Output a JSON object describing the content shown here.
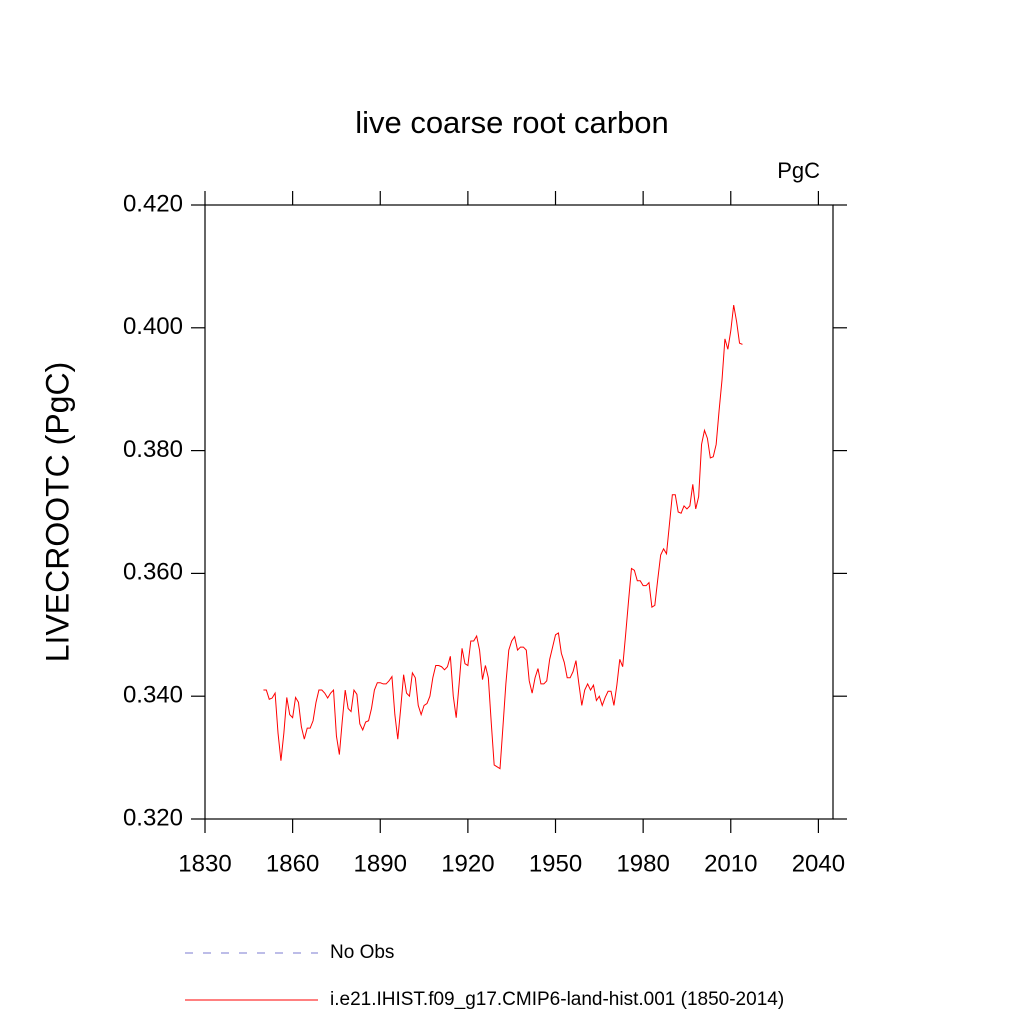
{
  "chart_data": {
    "type": "line",
    "title": "live coarse root carbon",
    "units": "PgC",
    "y_label": "LIVECROOTC  (PgC)",
    "xlim": [
      1830,
      2045
    ],
    "xticks": [
      1830,
      1860,
      1890,
      1920,
      1950,
      1980,
      2010,
      2040
    ],
    "ylim": [
      0.32,
      0.42
    ],
    "yticks": [
      {
        "value": 0.32,
        "label": "0.320"
      },
      {
        "value": 0.34,
        "label": "0.340"
      },
      {
        "value": 0.36,
        "label": "0.360"
      },
      {
        "value": 0.38,
        "label": "0.380"
      },
      {
        "value": 0.4,
        "label": "0.400"
      },
      {
        "value": 0.42,
        "label": "0.420"
      }
    ],
    "legend_items": [
      {
        "label": "No Obs",
        "color": "#7b7bd0",
        "dash": "8 10"
      }
    ],
    "x": [
      1850,
      1851,
      1852,
      1853,
      1854,
      1855,
      1856,
      1857,
      1858,
      1859,
      1860,
      1861,
      1862,
      1863,
      1864,
      1865,
      1866,
      1867,
      1868,
      1869,
      1870,
      1871,
      1872,
      1873,
      1874,
      1875,
      1876,
      1877,
      1878,
      1879,
      1880,
      1881,
      1882,
      1883,
      1884,
      1885,
      1886,
      1887,
      1888,
      1889,
      1890,
      1891,
      1892,
      1893,
      1894,
      1895,
      1896,
      1897,
      1898,
      1899,
      1900,
      1901,
      1902,
      1903,
      1904,
      1905,
      1906,
      1907,
      1908,
      1909,
      1910,
      1911,
      1912,
      1913,
      1914,
      1915,
      1916,
      1917,
      1918,
      1919,
      1920,
      1921,
      1922,
      1923,
      1924,
      1925,
      1926,
      1927,
      1928,
      1929,
      1930,
      1931,
      1932,
      1933,
      1934,
      1935,
      1936,
      1937,
      1938,
      1939,
      1940,
      1941,
      1942,
      1943,
      1944,
      1945,
      1946,
      1947,
      1948,
      1949,
      1950,
      1951,
      1952,
      1953,
      1954,
      1955,
      1956,
      1957,
      1958,
      1959,
      1960,
      1961,
      1962,
      1963,
      1964,
      1965,
      1966,
      1967,
      1968,
      1969,
      1970,
      1971,
      1972,
      1973,
      1974,
      1975,
      1976,
      1977,
      1978,
      1979,
      1980,
      1981,
      1982,
      1983,
      1984,
      1985,
      1986,
      1987,
      1988,
      1989,
      1990,
      1991,
      1992,
      1993,
      1994,
      1995,
      1996,
      1997,
      1998,
      1999,
      2000,
      2001,
      2002,
      2003,
      2004,
      2005,
      2006,
      2007,
      2008,
      2009,
      2010,
      2011,
      2012,
      2013,
      2014
    ],
    "series": [
      {
        "name": "i.e21.IHIST.f09_g17.CMIP6-land-hist.001 (1850-2014)",
        "color": "#ff0000",
        "values": [
          0.341,
          0.341,
          0.3395,
          0.3397,
          0.3405,
          0.334,
          0.3295,
          0.334,
          0.3398,
          0.337,
          0.3365,
          0.3398,
          0.339,
          0.335,
          0.333,
          0.3348,
          0.3348,
          0.336,
          0.339,
          0.341,
          0.341,
          0.3405,
          0.3397,
          0.3405,
          0.341,
          0.3335,
          0.3305,
          0.336,
          0.341,
          0.338,
          0.3375,
          0.341,
          0.3403,
          0.3355,
          0.3345,
          0.3358,
          0.336,
          0.338,
          0.341,
          0.3422,
          0.3422,
          0.342,
          0.342,
          0.3425,
          0.3432,
          0.337,
          0.333,
          0.338,
          0.3435,
          0.3405,
          0.34,
          0.3438,
          0.343,
          0.3385,
          0.337,
          0.3385,
          0.3388,
          0.34,
          0.343,
          0.345,
          0.345,
          0.3448,
          0.3443,
          0.3448,
          0.3465,
          0.34,
          0.3365,
          0.342,
          0.3478,
          0.3453,
          0.345,
          0.349,
          0.349,
          0.3498,
          0.3475,
          0.3427,
          0.345,
          0.343,
          0.3357,
          0.3288,
          0.3285,
          0.3282,
          0.335,
          0.342,
          0.3475,
          0.349,
          0.3497,
          0.3475,
          0.348,
          0.348,
          0.3475,
          0.3425,
          0.3405,
          0.343,
          0.3445,
          0.342,
          0.342,
          0.3425,
          0.346,
          0.348,
          0.35,
          0.3503,
          0.347,
          0.3455,
          0.343,
          0.343,
          0.344,
          0.3458,
          0.342,
          0.3385,
          0.341,
          0.342,
          0.341,
          0.3418,
          0.3393,
          0.34,
          0.3385,
          0.3398,
          0.3408,
          0.3408,
          0.3385,
          0.3418,
          0.346,
          0.3448,
          0.35,
          0.3555,
          0.3608,
          0.3605,
          0.3588,
          0.3588,
          0.358,
          0.358,
          0.3585,
          0.3545,
          0.3548,
          0.359,
          0.363,
          0.364,
          0.3632,
          0.368,
          0.3728,
          0.3728,
          0.37,
          0.3698,
          0.371,
          0.3705,
          0.371,
          0.3745,
          0.3705,
          0.3725,
          0.381,
          0.3833,
          0.382,
          0.3788,
          0.379,
          0.381,
          0.3865,
          0.3915,
          0.3982,
          0.3965,
          0.3995,
          0.4037,
          0.401,
          0.3975,
          0.3973
        ]
      }
    ]
  }
}
